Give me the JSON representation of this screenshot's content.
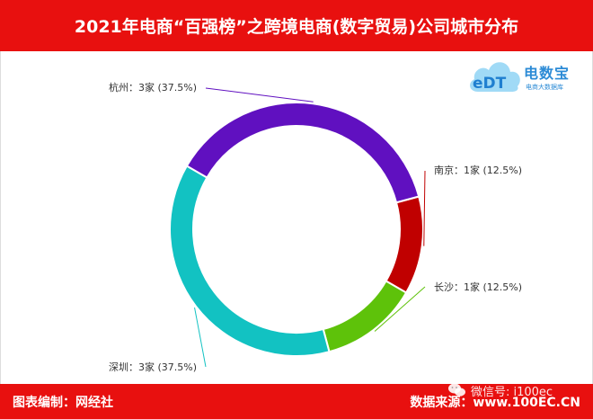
{
  "header": {
    "title": "2021年电商“百强榜”之跨境电商(数字贸易)公司城市分布"
  },
  "logo": {
    "brand": "电数宝",
    "mark": "eDT",
    "subtitle": "电商大数据库",
    "color": "#2c8bd6"
  },
  "footer": {
    "left": "图表编制：网经社",
    "right": "数据来源：www.100EC.CN"
  },
  "watermark": {
    "text": "微信号: i100ec"
  },
  "chart_data": {
    "type": "pie",
    "donut": true,
    "slices": [
      {
        "name": "南京",
        "value": 1,
        "unit": "家",
        "percent": "12.5%",
        "label": "南京：1家 (12.5%)",
        "color": "#c00000"
      },
      {
        "name": "长沙",
        "value": 1,
        "unit": "家",
        "percent": "12.5%",
        "label": "长沙：1家 (12.5%)",
        "color": "#5ec20a"
      },
      {
        "name": "深圳",
        "value": 3,
        "unit": "家",
        "percent": "37.5%",
        "label": "深圳：3家 (37.5%)",
        "color": "#12c2c2"
      },
      {
        "name": "杭州",
        "value": 3,
        "unit": "家",
        "percent": "37.5%",
        "label": "杭州：3家 (37.5%)",
        "color": "#6010c0"
      }
    ]
  }
}
